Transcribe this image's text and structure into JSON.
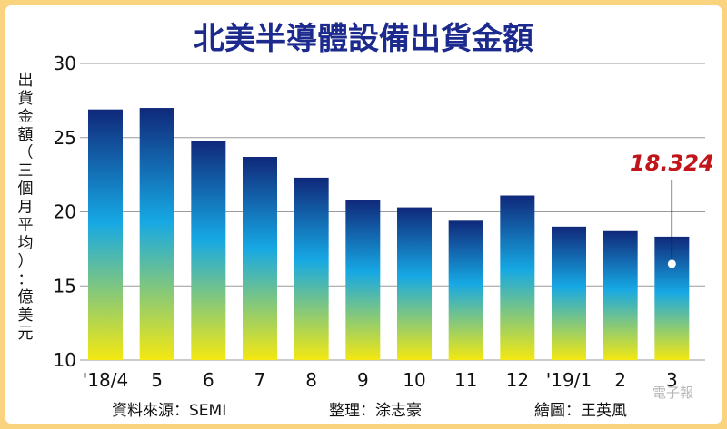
{
  "chart_data": {
    "type": "bar",
    "title": "北美半導體設備出貨金額",
    "ylabel": "出貨金額（三個月平均）：億美元",
    "categories": [
      "'18/4",
      "5",
      "6",
      "7",
      "8",
      "9",
      "10",
      "11",
      "12",
      "'19/1",
      "2",
      "3"
    ],
    "values": [
      26.9,
      27.0,
      24.8,
      23.7,
      22.3,
      20.8,
      20.3,
      19.4,
      21.1,
      19.0,
      18.7,
      18.324
    ],
    "ylim": [
      10,
      30
    ],
    "yticks": [
      10,
      15,
      20,
      25,
      30
    ],
    "grid": true,
    "annotation": {
      "category": "3",
      "label": "18.324",
      "color": "#c0151b"
    },
    "bar_gradient": [
      "#f4e811",
      "#16a8e4",
      "#10287a"
    ]
  },
  "footer": {
    "source": "資料來源：SEMI",
    "editor": "整理：涂志豪",
    "illustrator": "繪圖：王英風"
  },
  "watermark": "電子報"
}
